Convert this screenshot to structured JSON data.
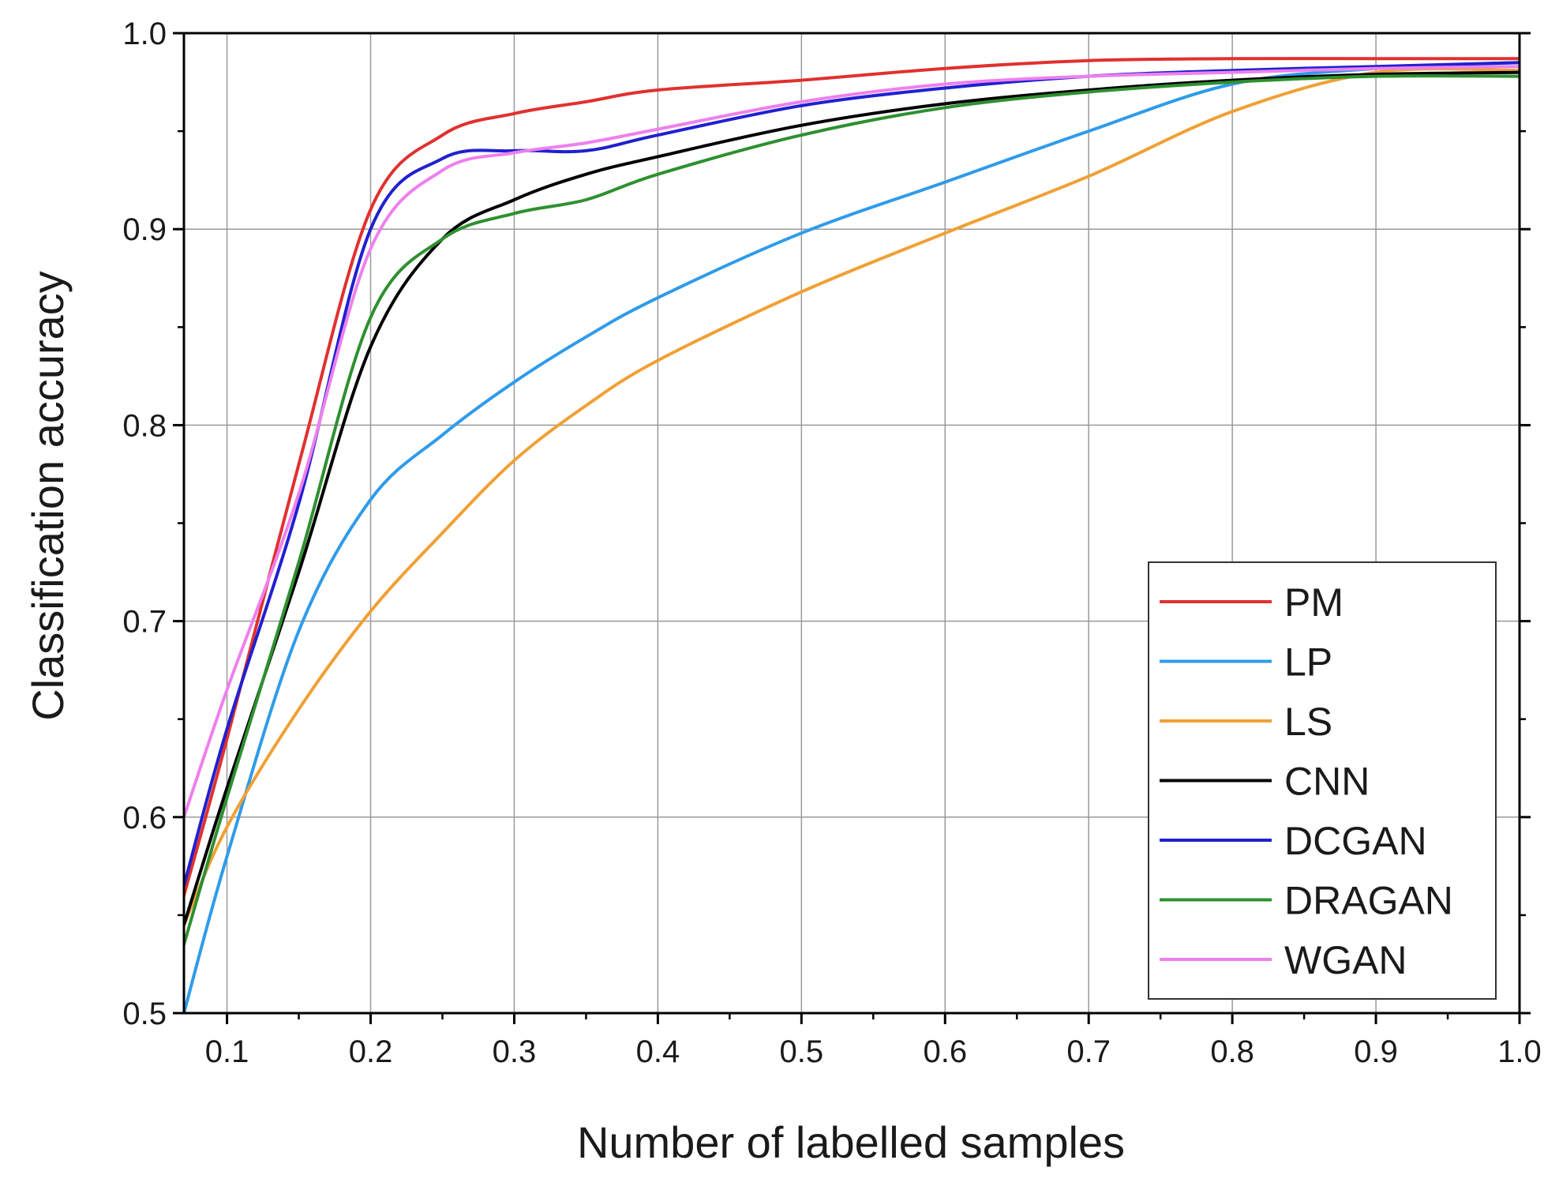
{
  "chart_data": {
    "type": "line",
    "title": "",
    "xlabel": "Number of labelled samples",
    "ylabel": "Classification accuracy",
    "xlim": [
      0.07,
      1.0
    ],
    "ylim": [
      0.5,
      1.0
    ],
    "xticks": [
      "0.1",
      "0.2",
      "0.3",
      "0.4",
      "0.5",
      "0.6",
      "0.7",
      "0.8",
      "0.9",
      "1.0"
    ],
    "yticks": [
      "0.5",
      "0.6",
      "0.7",
      "0.8",
      "0.9",
      "1.0"
    ],
    "grid": true,
    "legend_position": "bottom-right",
    "series": [
      {
        "name": "PM",
        "color": "#e0312f",
        "x": [
          0.07,
          0.1,
          0.15,
          0.2,
          0.25,
          0.3,
          0.35,
          0.4,
          0.5,
          0.6,
          0.7,
          0.8,
          0.9,
          1.0
        ],
        "y": [
          0.56,
          0.64,
          0.78,
          0.91,
          0.948,
          0.959,
          0.965,
          0.971,
          0.976,
          0.982,
          0.986,
          0.987,
          0.987,
          0.987
        ]
      },
      {
        "name": "LP",
        "color": "#2f9bea",
        "x": [
          0.07,
          0.1,
          0.15,
          0.2,
          0.25,
          0.3,
          0.35,
          0.4,
          0.5,
          0.6,
          0.7,
          0.8,
          0.9,
          1.0
        ],
        "y": [
          0.5,
          0.58,
          0.695,
          0.762,
          0.795,
          0.822,
          0.845,
          0.865,
          0.898,
          0.924,
          0.95,
          0.974,
          0.982,
          0.985
        ]
      },
      {
        "name": "LS",
        "color": "#f0a035",
        "x": [
          0.07,
          0.1,
          0.15,
          0.2,
          0.25,
          0.3,
          0.35,
          0.4,
          0.5,
          0.6,
          0.7,
          0.8,
          0.9,
          1.0
        ],
        "y": [
          0.545,
          0.595,
          0.655,
          0.705,
          0.745,
          0.782,
          0.81,
          0.833,
          0.868,
          0.898,
          0.927,
          0.96,
          0.98,
          0.981
        ]
      },
      {
        "name": "CNN",
        "color": "#000000",
        "x": [
          0.07,
          0.1,
          0.15,
          0.2,
          0.25,
          0.3,
          0.35,
          0.4,
          0.5,
          0.6,
          0.7,
          0.8,
          0.9,
          1.0
        ],
        "y": [
          0.545,
          0.615,
          0.725,
          0.84,
          0.895,
          0.915,
          0.928,
          0.937,
          0.953,
          0.964,
          0.971,
          0.976,
          0.979,
          0.98
        ]
      },
      {
        "name": "DCGAN",
        "color": "#2020d0",
        "x": [
          0.07,
          0.1,
          0.15,
          0.2,
          0.25,
          0.3,
          0.35,
          0.4,
          0.5,
          0.6,
          0.7,
          0.8,
          0.9,
          1.0
        ],
        "y": [
          0.565,
          0.645,
          0.76,
          0.9,
          0.936,
          0.94,
          0.94,
          0.948,
          0.963,
          0.972,
          0.978,
          0.981,
          0.983,
          0.985
        ]
      },
      {
        "name": "DRAGAN",
        "color": "#2e9030",
        "x": [
          0.07,
          0.1,
          0.15,
          0.2,
          0.25,
          0.3,
          0.35,
          0.4,
          0.5,
          0.6,
          0.7,
          0.8,
          0.9,
          1.0
        ],
        "y": [
          0.535,
          0.61,
          0.73,
          0.855,
          0.895,
          0.908,
          0.915,
          0.928,
          0.948,
          0.962,
          0.97,
          0.975,
          0.978,
          0.978
        ]
      },
      {
        "name": "WGAN",
        "color": "#ee80ee",
        "x": [
          0.07,
          0.1,
          0.15,
          0.2,
          0.25,
          0.3,
          0.35,
          0.4,
          0.5,
          0.6,
          0.7,
          0.8,
          0.9,
          1.0
        ],
        "y": [
          0.6,
          0.665,
          0.765,
          0.89,
          0.93,
          0.939,
          0.944,
          0.951,
          0.965,
          0.974,
          0.978,
          0.98,
          0.982,
          0.983
        ]
      }
    ]
  }
}
